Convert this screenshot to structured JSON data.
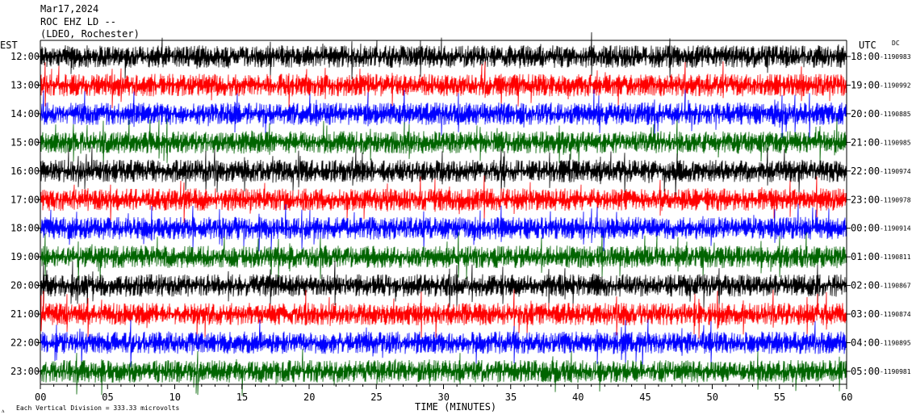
{
  "header": {
    "date": "Mar17,2024",
    "station": "ROC EHZ LD --",
    "network": "(LDEO, Rochester)",
    "left_zone": "EST",
    "right_zone": "UTC",
    "dc_label": "DC"
  },
  "footer": {
    "x_axis_label": "TIME (MINUTES)",
    "scale_note": "Each Vertical Division =  333.33 microvolts"
  },
  "colors": {
    "trace_cycle": [
      "#000000",
      "#ff0000",
      "#0000ff",
      "#006400"
    ],
    "frame": "#000000",
    "background": "#ffffff"
  },
  "chart_data": {
    "type": "line",
    "title": "",
    "xlabel": "TIME (MINUTES)",
    "ylabel": "",
    "xlim": [
      0,
      60
    ],
    "x_ticks": [
      "00",
      "05",
      "10",
      "15",
      "20",
      "25",
      "30",
      "35",
      "40",
      "45",
      "50",
      "55",
      "60"
    ],
    "grid": false,
    "rows": [
      {
        "est": "12:00",
        "utc": "18:00",
        "dc": "-1190983"
      },
      {
        "est": "13:00",
        "utc": "19:00",
        "dc": "-1190992"
      },
      {
        "est": "14:00",
        "utc": "20:00",
        "dc": "-1190885"
      },
      {
        "est": "15:00",
        "utc": "21:00",
        "dc": "-1190985"
      },
      {
        "est": "16:00",
        "utc": "22:00",
        "dc": "-1190974"
      },
      {
        "est": "17:00",
        "utc": "23:00",
        "dc": "-1190978"
      },
      {
        "est": "18:00",
        "utc": "00:00",
        "dc": "-1190914"
      },
      {
        "est": "19:00",
        "utc": "01:00",
        "dc": "-1190811"
      },
      {
        "est": "20:00",
        "utc": "02:00",
        "dc": "-1190867"
      },
      {
        "est": "21:00",
        "utc": "03:00",
        "dc": "-1190874"
      },
      {
        "est": "22:00",
        "utc": "04:00",
        "dc": "-1190895"
      },
      {
        "est": "23:00",
        "utc": "05:00",
        "dc": "-1190981"
      }
    ]
  }
}
